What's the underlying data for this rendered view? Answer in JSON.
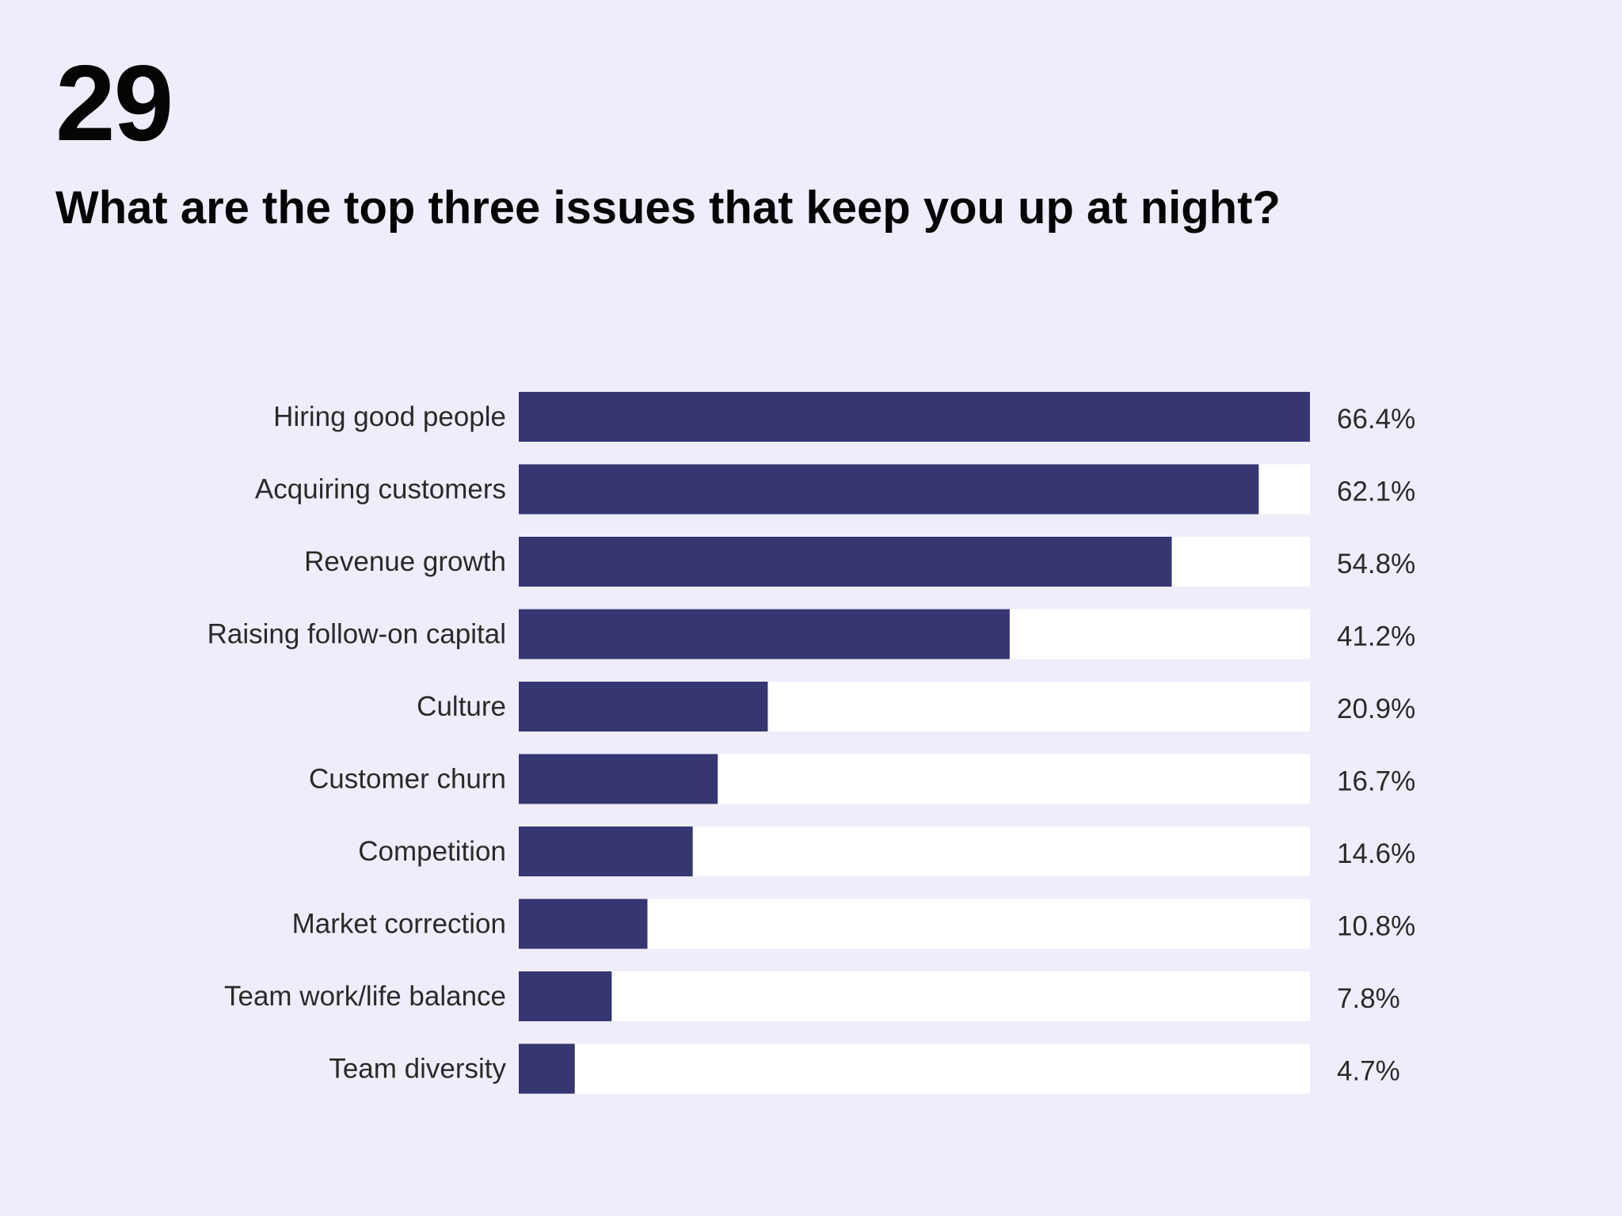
{
  "slide": {
    "number": "29",
    "title": "What are the top three issues that keep you up at night?"
  },
  "colors": {
    "background": "#EFEDFC",
    "bar_fill": "#363672",
    "bar_track": "#FFFFFF",
    "text": "#2A2A2A"
  },
  "chart_data": {
    "type": "bar",
    "orientation": "horizontal",
    "title": "What are the top three issues that keep you up at night?",
    "categories": [
      "Hiring good people",
      "Acquiring customers",
      "Revenue growth",
      "Raising follow-on capital",
      "Culture",
      "Customer churn",
      "Competition",
      "Market correction",
      "Team work/life balance",
      "Team diversity"
    ],
    "values": [
      66.4,
      62.1,
      54.8,
      41.2,
      20.9,
      16.7,
      14.6,
      10.8,
      7.8,
      4.7
    ],
    "value_labels": [
      "66.4%",
      "62.1%",
      "54.8%",
      "41.2%",
      "20.9%",
      "16.7%",
      "14.6%",
      "10.8%",
      "7.8%",
      "4.7%"
    ],
    "xlim": [
      0,
      66.4
    ],
    "unit": "%",
    "grid": false,
    "legend": "none"
  }
}
